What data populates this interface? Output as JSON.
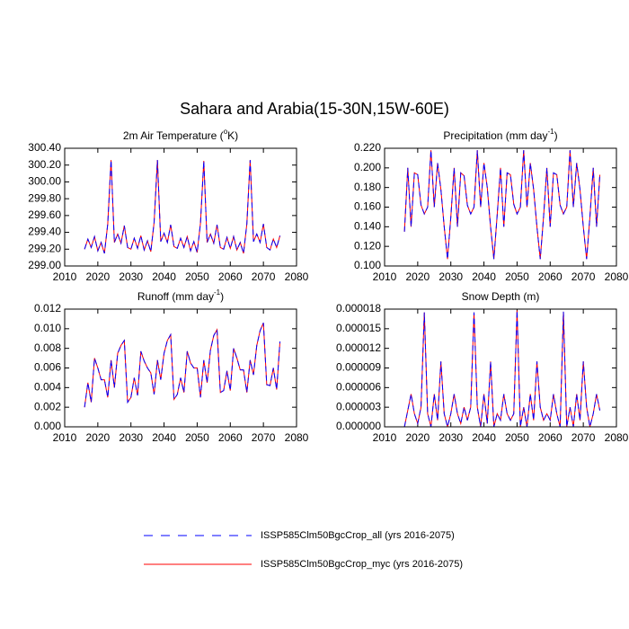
{
  "title": "Sahara and Arabia(15-30N,15W-60E)",
  "chart_data": [
    {
      "type": "line",
      "title": [
        "2m Air Temperature (",
        "o",
        "K)"
      ],
      "x": [
        2016,
        2017,
        2018,
        2019,
        2020,
        2021,
        2022,
        2023,
        2024,
        2025,
        2026,
        2027,
        2028,
        2029,
        2030,
        2031,
        2032,
        2033,
        2034,
        2035,
        2036,
        2037,
        2038,
        2039,
        2040,
        2041,
        2042,
        2043,
        2044,
        2045,
        2046,
        2047,
        2048,
        2049,
        2050,
        2051,
        2052,
        2053,
        2054,
        2055,
        2056,
        2057,
        2058,
        2059,
        2060,
        2061,
        2062,
        2063,
        2064,
        2065,
        2066,
        2067,
        2068,
        2069,
        2070,
        2071,
        2072,
        2073,
        2074,
        2075
      ],
      "xlim": [
        2010,
        2080
      ],
      "xticks": [
        2010,
        2020,
        2030,
        2040,
        2050,
        2060,
        2070,
        2080
      ],
      "ylim": [
        299.0,
        300.4
      ],
      "yticks": [
        {
          "value": 299.0,
          "label": "299.00"
        },
        {
          "value": 299.2,
          "label": "299.20"
        },
        {
          "value": 299.4,
          "label": "299.40"
        },
        {
          "value": 299.6,
          "label": "299.60"
        },
        {
          "value": 299.8,
          "label": "299.80"
        },
        {
          "value": 300.0,
          "label": "300.00"
        },
        {
          "value": 300.2,
          "label": "300.20"
        },
        {
          "value": 300.4,
          "label": "300.40"
        }
      ],
      "series": [
        {
          "name": "ISSP585Clm50BgcCrop_all (yrs 2016-2075)",
          "color": "#0000ff",
          "dashed": true,
          "values": [
            299.2,
            299.32,
            299.22,
            299.35,
            299.18,
            299.28,
            299.15,
            299.5,
            300.26,
            299.28,
            299.38,
            299.27,
            299.48,
            299.22,
            299.2,
            299.33,
            299.21,
            299.36,
            299.19,
            299.3,
            299.17,
            299.52,
            300.26,
            299.29,
            299.39,
            299.28,
            299.49,
            299.23,
            299.21,
            299.33,
            299.22,
            299.35,
            299.18,
            299.29,
            299.16,
            299.51,
            300.25,
            299.28,
            299.38,
            299.27,
            299.49,
            299.22,
            299.2,
            299.34,
            299.21,
            299.35,
            299.19,
            299.28,
            299.15,
            299.5,
            300.26,
            299.29,
            299.38,
            299.28,
            299.5,
            299.22,
            299.19,
            299.32,
            299.22,
            299.36
          ]
        },
        {
          "name": "ISSP585Clm50BgcCrop_myc (yrs 2016-2075)",
          "color": "#ff0000",
          "dashed": false,
          "values": [
            299.2,
            299.32,
            299.22,
            299.35,
            299.18,
            299.28,
            299.15,
            299.5,
            300.26,
            299.28,
            299.38,
            299.27,
            299.48,
            299.22,
            299.2,
            299.33,
            299.21,
            299.36,
            299.19,
            299.3,
            299.17,
            299.52,
            300.26,
            299.29,
            299.39,
            299.28,
            299.49,
            299.23,
            299.21,
            299.33,
            299.22,
            299.35,
            299.18,
            299.29,
            299.16,
            299.51,
            300.25,
            299.28,
            299.38,
            299.27,
            299.49,
            299.22,
            299.2,
            299.34,
            299.21,
            299.35,
            299.19,
            299.28,
            299.15,
            299.5,
            300.26,
            299.29,
            299.38,
            299.28,
            299.5,
            299.22,
            299.19,
            299.32,
            299.22,
            299.36
          ]
        }
      ]
    },
    {
      "type": "line",
      "title": [
        "Precipitation (mm day",
        "-1",
        ")"
      ],
      "x": [
        2016,
        2017,
        2018,
        2019,
        2020,
        2021,
        2022,
        2023,
        2024,
        2025,
        2026,
        2027,
        2028,
        2029,
        2030,
        2031,
        2032,
        2033,
        2034,
        2035,
        2036,
        2037,
        2038,
        2039,
        2040,
        2041,
        2042,
        2043,
        2044,
        2045,
        2046,
        2047,
        2048,
        2049,
        2050,
        2051,
        2052,
        2053,
        2054,
        2055,
        2056,
        2057,
        2058,
        2059,
        2060,
        2061,
        2062,
        2063,
        2064,
        2065,
        2066,
        2067,
        2068,
        2069,
        2070,
        2071,
        2072,
        2073,
        2074,
        2075
      ],
      "xlim": [
        2010,
        2080
      ],
      "xticks": [
        2010,
        2020,
        2030,
        2040,
        2050,
        2060,
        2070,
        2080
      ],
      "ylim": [
        0.1,
        0.22
      ],
      "yticks": [
        {
          "value": 0.1,
          "label": "0.100"
        },
        {
          "value": 0.12,
          "label": "0.120"
        },
        {
          "value": 0.14,
          "label": "0.140"
        },
        {
          "value": 0.16,
          "label": "0.160"
        },
        {
          "value": 0.18,
          "label": "0.180"
        },
        {
          "value": 0.2,
          "label": "0.200"
        },
        {
          "value": 0.22,
          "label": "0.220"
        }
      ],
      "series": [
        {
          "name": "ISSP585Clm50BgcCrop_all (yrs 2016-2075)",
          "color": "#0000ff",
          "dashed": true,
          "values": [
            0.135,
            0.2,
            0.14,
            0.195,
            0.193,
            0.162,
            0.153,
            0.16,
            0.218,
            0.16,
            0.205,
            0.178,
            0.14,
            0.107,
            0.15,
            0.2,
            0.14,
            0.195,
            0.192,
            0.162,
            0.153,
            0.16,
            0.218,
            0.16,
            0.205,
            0.18,
            0.14,
            0.107,
            0.152,
            0.2,
            0.14,
            0.195,
            0.193,
            0.163,
            0.153,
            0.16,
            0.218,
            0.16,
            0.205,
            0.178,
            0.14,
            0.107,
            0.15,
            0.2,
            0.14,
            0.195,
            0.193,
            0.162,
            0.153,
            0.16,
            0.218,
            0.16,
            0.205,
            0.178,
            0.14,
            0.107,
            0.15,
            0.2,
            0.14,
            0.193
          ]
        },
        {
          "name": "ISSP585Clm50BgcCrop_myc (yrs 2016-2075)",
          "color": "#ff0000",
          "dashed": false,
          "values": [
            0.135,
            0.2,
            0.14,
            0.195,
            0.193,
            0.162,
            0.153,
            0.16,
            0.218,
            0.16,
            0.205,
            0.178,
            0.14,
            0.107,
            0.15,
            0.2,
            0.14,
            0.195,
            0.192,
            0.162,
            0.153,
            0.16,
            0.218,
            0.16,
            0.205,
            0.18,
            0.14,
            0.107,
            0.152,
            0.2,
            0.14,
            0.195,
            0.193,
            0.163,
            0.153,
            0.16,
            0.218,
            0.16,
            0.205,
            0.178,
            0.14,
            0.107,
            0.15,
            0.2,
            0.14,
            0.195,
            0.193,
            0.162,
            0.153,
            0.16,
            0.218,
            0.16,
            0.205,
            0.178,
            0.14,
            0.107,
            0.15,
            0.2,
            0.14,
            0.193
          ]
        }
      ]
    },
    {
      "type": "line",
      "title": [
        "Runoff (mm day",
        "-1",
        ")"
      ],
      "x": [
        2016,
        2017,
        2018,
        2019,
        2020,
        2021,
        2022,
        2023,
        2024,
        2025,
        2026,
        2027,
        2028,
        2029,
        2030,
        2031,
        2032,
        2033,
        2034,
        2035,
        2036,
        2037,
        2038,
        2039,
        2040,
        2041,
        2042,
        2043,
        2044,
        2045,
        2046,
        2047,
        2048,
        2049,
        2050,
        2051,
        2052,
        2053,
        2054,
        2055,
        2056,
        2057,
        2058,
        2059,
        2060,
        2061,
        2062,
        2063,
        2064,
        2065,
        2066,
        2067,
        2068,
        2069,
        2070,
        2071,
        2072,
        2073,
        2074,
        2075
      ],
      "xlim": [
        2010,
        2080
      ],
      "xticks": [
        2010,
        2020,
        2030,
        2040,
        2050,
        2060,
        2070,
        2080
      ],
      "ylim": [
        0,
        0.012
      ],
      "yticks": [
        {
          "value": 0,
          "label": "0.000"
        },
        0.002,
        0.004,
        0.006,
        0.008,
        {
          "value": 0.01,
          "label": "0.010"
        },
        0.012
      ],
      "series": [
        {
          "name": "ISSP585Clm50BgcCrop_all (yrs 2016-2075)",
          "color": "#0000ff",
          "dashed": true,
          "values": [
            0.002,
            0.0045,
            0.0025,
            0.007,
            0.006,
            0.0048,
            0.0048,
            0.003,
            0.0068,
            0.004,
            0.0075,
            0.0083,
            0.0088,
            0.0025,
            0.003,
            0.005,
            0.0032,
            0.0077,
            0.0067,
            0.006,
            0.0055,
            0.0033,
            0.0068,
            0.0048,
            0.0075,
            0.0088,
            0.0094,
            0.0028,
            0.0033,
            0.005,
            0.0035,
            0.0077,
            0.0065,
            0.006,
            0.006,
            0.003,
            0.0068,
            0.0045,
            0.0078,
            0.0093,
            0.0099,
            0.0035,
            0.0037,
            0.0057,
            0.0037,
            0.008,
            0.007,
            0.0058,
            0.0058,
            0.0035,
            0.0068,
            0.0053,
            0.0083,
            0.0098,
            0.0106,
            0.0043,
            0.0042,
            0.006,
            0.0038,
            0.0087
          ]
        },
        {
          "name": "ISSP585Clm50BgcCrop_myc (yrs 2016-2075)",
          "color": "#ff0000",
          "dashed": false,
          "values": [
            0.002,
            0.0045,
            0.0025,
            0.007,
            0.006,
            0.0048,
            0.0048,
            0.003,
            0.0068,
            0.004,
            0.0075,
            0.0083,
            0.0088,
            0.0025,
            0.003,
            0.005,
            0.0032,
            0.0077,
            0.0067,
            0.006,
            0.0055,
            0.0033,
            0.0068,
            0.0048,
            0.0075,
            0.0088,
            0.0094,
            0.0028,
            0.0033,
            0.005,
            0.0035,
            0.0077,
            0.0065,
            0.006,
            0.006,
            0.003,
            0.0068,
            0.0045,
            0.0078,
            0.0093,
            0.0099,
            0.0035,
            0.0037,
            0.0057,
            0.0037,
            0.008,
            0.007,
            0.0058,
            0.0058,
            0.0035,
            0.0068,
            0.0053,
            0.0083,
            0.0098,
            0.0106,
            0.0043,
            0.0042,
            0.006,
            0.0038,
            0.0087
          ]
        }
      ]
    },
    {
      "type": "line",
      "title": "Snow Depth (m)",
      "x": [
        2016,
        2017,
        2018,
        2019,
        2020,
        2021,
        2022,
        2023,
        2024,
        2025,
        2026,
        2027,
        2028,
        2029,
        2030,
        2031,
        2032,
        2033,
        2034,
        2035,
        2036,
        2037,
        2038,
        2039,
        2040,
        2041,
        2042,
        2043,
        2044,
        2045,
        2046,
        2047,
        2048,
        2049,
        2050,
        2051,
        2052,
        2053,
        2054,
        2055,
        2056,
        2057,
        2058,
        2059,
        2060,
        2061,
        2062,
        2063,
        2064,
        2065,
        2066,
        2067,
        2068,
        2069,
        2070,
        2071,
        2072,
        2073,
        2074,
        2075
      ],
      "xlim": [
        2010,
        2080
      ],
      "xticks": [
        2010,
        2020,
        2030,
        2040,
        2050,
        2060,
        2070,
        2080
      ],
      "ylim": [
        0,
        1.8e-05
      ],
      "yticks": [
        {
          "value": 0,
          "label": "0.000000"
        },
        {
          "value": 3e-06,
          "label": "0.000003"
        },
        {
          "value": 6e-06,
          "label": "0.000006"
        },
        {
          "value": 9e-06,
          "label": "0.000009"
        },
        {
          "value": 1.2e-05,
          "label": "0.000012"
        },
        {
          "value": 1.5e-05,
          "label": "0.000015"
        },
        {
          "value": 1.8e-05,
          "label": "0.000018"
        }
      ],
      "series": [
        {
          "name": "ISSP585Clm50BgcCrop_all (yrs 2016-2075)",
          "color": "#0000ff",
          "dashed": true,
          "values": [
            0,
            2.5e-06,
            5e-06,
            2e-06,
            5e-07,
            3e-06,
            1.75e-05,
            2e-06,
            0,
            5e-06,
            1e-06,
            1e-05,
            2e-06,
            0,
            2e-06,
            5e-06,
            2e-06,
            5e-07,
            3e-06,
            1e-06,
            3e-06,
            1.75e-05,
            3e-06,
            0,
            5e-06,
            5e-07,
            1e-05,
            0,
            2e-06,
            1e-06,
            5e-06,
            2e-06,
            1e-06,
            2e-06,
            1.78e-05,
            0,
            3e-06,
            0,
            5e-06,
            1e-06,
            1e-05,
            3e-06,
            1e-06,
            2e-06,
            1e-06,
            5e-06,
            2e-06,
            0,
            1.76e-05,
            0,
            3e-06,
            0,
            5e-06,
            1e-06,
            1e-05,
            3e-06,
            0,
            2e-06,
            5e-06,
            2.5e-06
          ]
        },
        {
          "name": "ISSP585Clm50BgcCrop_myc (yrs 2016-2075)",
          "color": "#ff0000",
          "dashed": false,
          "values": [
            0,
            2.5e-06,
            5e-06,
            2e-06,
            5e-07,
            3e-06,
            1.75e-05,
            2e-06,
            0,
            5e-06,
            1e-06,
            1e-05,
            2e-06,
            0,
            2e-06,
            5e-06,
            2e-06,
            5e-07,
            3e-06,
            1e-06,
            3e-06,
            1.75e-05,
            3e-06,
            0,
            5e-06,
            5e-07,
            1e-05,
            0,
            2e-06,
            1e-06,
            5e-06,
            2e-06,
            1e-06,
            2e-06,
            1.78e-05,
            0,
            3e-06,
            0,
            5e-06,
            1e-06,
            1e-05,
            3e-06,
            1e-06,
            2e-06,
            1e-06,
            5e-06,
            2e-06,
            0,
            1.76e-05,
            0,
            3e-06,
            0,
            5e-06,
            1e-06,
            1e-05,
            3e-06,
            0,
            2e-06,
            5e-06,
            2.5e-06
          ]
        }
      ]
    }
  ]
}
